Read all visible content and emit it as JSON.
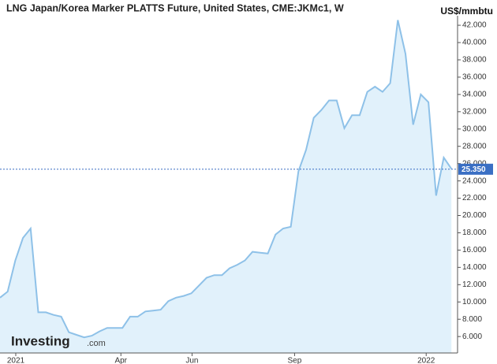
{
  "chart_data": {
    "type": "area",
    "title": "LNG Japan/Korea Marker PLATTS Future, United States, CME:JKMc1, W",
    "y_label": "US$/mmbtu",
    "watermark": "Investing",
    "watermark_suffix": ".com",
    "color": "#8ec1e8",
    "fill": "#e1f1fb",
    "x": [
      0,
      1,
      2,
      3,
      4,
      5,
      6,
      7,
      8,
      9,
      10,
      11,
      12,
      13,
      14,
      15,
      16,
      17,
      18,
      19,
      20,
      21,
      22,
      23,
      24,
      25,
      26,
      27,
      28,
      29,
      30,
      31,
      32,
      33,
      34,
      35,
      36,
      37,
      38,
      39,
      40,
      41,
      42,
      43,
      44,
      45,
      46,
      47,
      48,
      49,
      50,
      51,
      52,
      53,
      54,
      55,
      56,
      57,
      58,
      59
    ],
    "values": [
      10.5,
      11.2,
      14.8,
      17.4,
      18.5,
      8.8,
      8.8,
      8.5,
      8.3,
      6.5,
      6.2,
      5.9,
      6.1,
      6.6,
      7.0,
      7.0,
      7.0,
      8.3,
      8.3,
      8.9,
      9.0,
      9.1,
      10.1,
      10.5,
      10.7,
      11.0,
      11.9,
      12.8,
      13.1,
      13.1,
      13.9,
      14.3,
      14.8,
      15.8,
      15.7,
      15.6,
      17.8,
      18.5,
      18.7,
      25.1,
      27.6,
      31.3,
      32.2,
      33.3,
      33.3,
      30.1,
      31.6,
      31.6,
      34.3,
      34.9,
      34.3,
      35.3,
      42.6,
      38.7,
      30.5,
      34.0,
      33.1,
      22.3,
      26.7,
      25.4
    ],
    "last_price": {
      "value": 25.35,
      "label": "25.350"
    },
    "xlim": [
      0,
      59.8
    ],
    "xticks": [
      {
        "value": 2.06,
        "label": "2021"
      },
      {
        "value": 15.8,
        "label": "Apr"
      },
      {
        "value": 25.1,
        "label": "Jun"
      },
      {
        "value": 38.5,
        "label": "Sep"
      },
      {
        "value": 55.7,
        "label": "2022"
      }
    ],
    "ylim": [
      4.1,
      43.1
    ],
    "yticks": [
      {
        "value": 6,
        "label": "6.000"
      },
      {
        "value": 8,
        "label": "8.000"
      },
      {
        "value": 10,
        "label": "10.000"
      },
      {
        "value": 12,
        "label": "12.000"
      },
      {
        "value": 14,
        "label": "14.000"
      },
      {
        "value": 16,
        "label": "16.000"
      },
      {
        "value": 18,
        "label": "18.000"
      },
      {
        "value": 20,
        "label": "20.000"
      },
      {
        "value": 22,
        "label": "22.000"
      },
      {
        "value": 24,
        "label": "24.000"
      },
      {
        "value": 26,
        "label": "26.000"
      },
      {
        "value": 28,
        "label": "28.000"
      },
      {
        "value": 30,
        "label": "30.000"
      },
      {
        "value": 32,
        "label": "32.000"
      },
      {
        "value": 34,
        "label": "34.000"
      },
      {
        "value": 36,
        "label": "36.000"
      },
      {
        "value": 38,
        "label": "38.000"
      },
      {
        "value": 40,
        "label": "40.000"
      },
      {
        "value": 42,
        "label": "42.000"
      }
    ]
  }
}
